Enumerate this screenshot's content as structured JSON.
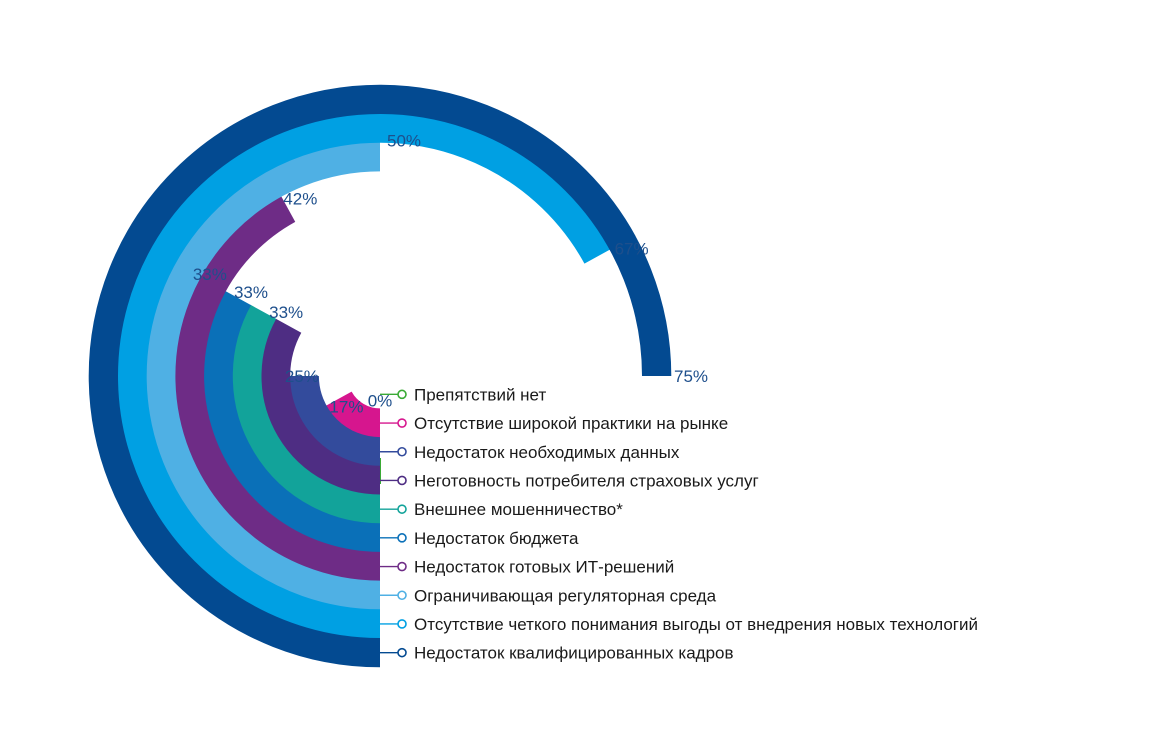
{
  "chart_data": {
    "type": "radial-bar",
    "max_percent": 100,
    "series": [
      {
        "label": "Препятствий нет",
        "value": 0,
        "value_label": "0%",
        "color": "#3aaa35"
      },
      {
        "label": "Отсутствие широкой практики на рынке",
        "value": 17,
        "value_label": "17%",
        "color": "#d6168e"
      },
      {
        "label": "Недостаток необходимых данных",
        "value": 25,
        "value_label": "25%",
        "color": "#334b9c"
      },
      {
        "label": "Неготовность потребителя страховых услуг",
        "value": 33,
        "value_label": "33%",
        "color": "#4e2d83"
      },
      {
        "label": "Внешнее мошенничество*",
        "value": 33,
        "value_label": "33%",
        "color": "#12a39a"
      },
      {
        "label": "Недостаток бюджета",
        "value": 33,
        "value_label": "33%",
        "color": "#0a70b8"
      },
      {
        "label": "Недостаток готовых ИТ-решений",
        "value": 42,
        "value_label": "42%",
        "color": "#6e2c86"
      },
      {
        "label": "Ограничивающая регуляторная среда",
        "value": 50,
        "value_label": "50%",
        "color": "#4fb0e4"
      },
      {
        "label": "Отсутствие четкого понимания выгоды от внедрения новых технологий",
        "value": 67,
        "value_label": "67%",
        "color": "#00a0e3"
      },
      {
        "label": "Недостаток квалифицированных кадров",
        "value": 75,
        "value_label": "75%",
        "color": "#034a91"
      }
    ]
  }
}
